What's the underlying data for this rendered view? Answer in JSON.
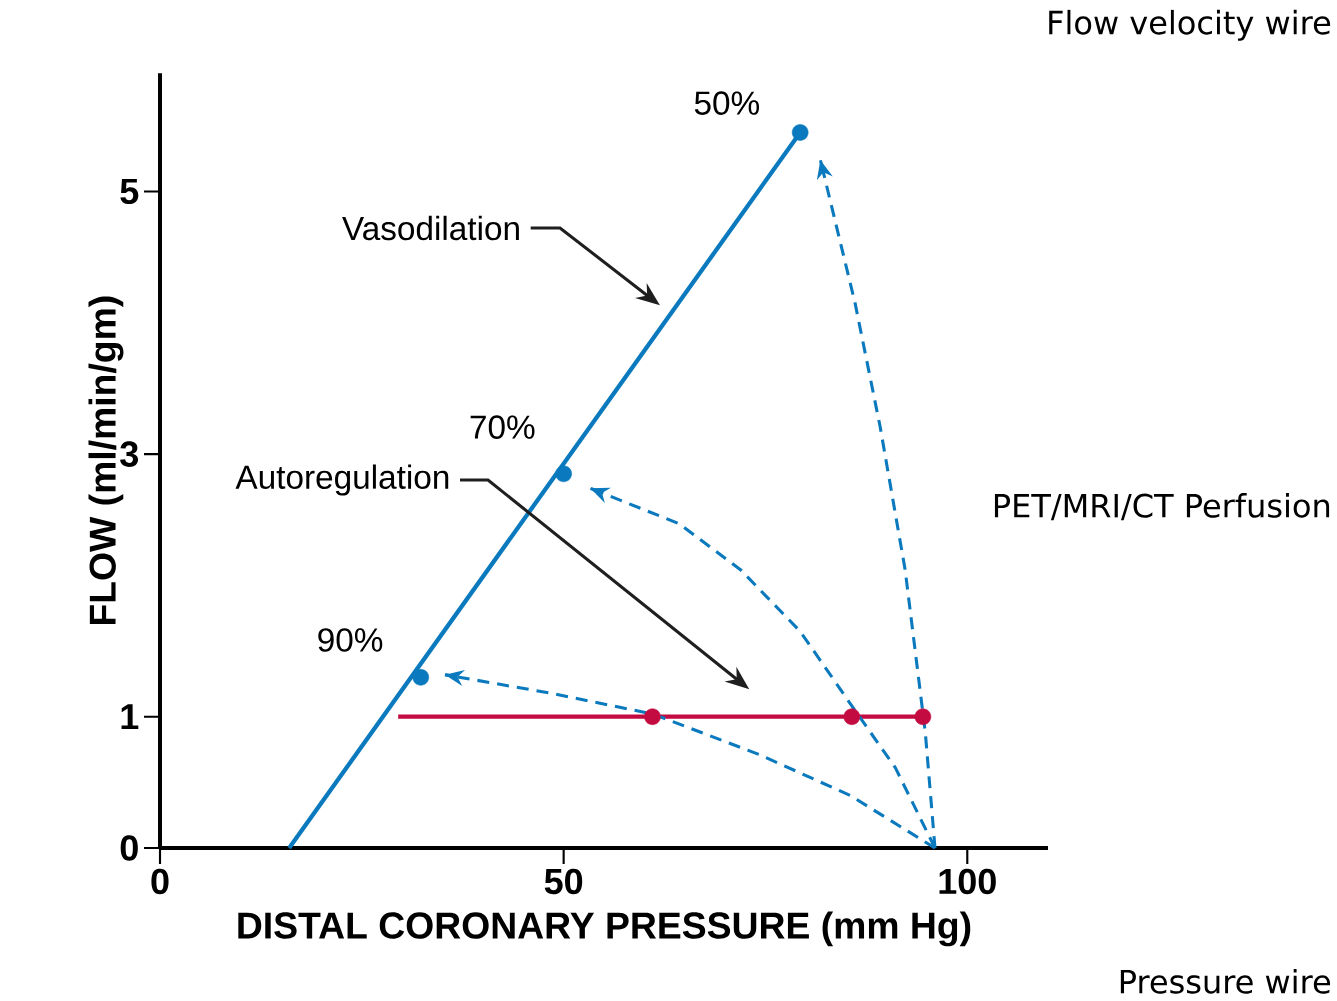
{
  "chart_data": {
    "type": "line",
    "xlabel": "DISTAL CORONARY PRESSURE (mm Hg)",
    "ylabel": "FLOW (ml/min/gm)",
    "xlim": [
      0,
      110
    ],
    "ylim": [
      0,
      5.9
    ],
    "xticks": [
      0,
      50,
      100
    ],
    "yticks": [
      0,
      1,
      3,
      5
    ],
    "series": [
      {
        "type": "line",
        "color": "#0a79bd",
        "marker": "none",
        "line_style": "solid",
        "x": [
          16,
          79.3
        ],
        "values": [
          0,
          5.45
        ]
      },
      {
        "type": "scatter",
        "color": "#0a79bd",
        "marker": "circle",
        "x": [
          32.3,
          50,
          79.3
        ],
        "values": [
          1.3,
          2.85,
          5.45
        ]
      },
      {
        "type": "line",
        "color": "#c30b42",
        "marker": "none",
        "line_style": "solid",
        "x": [
          29.5,
          94.5
        ],
        "values": [
          1,
          1
        ]
      },
      {
        "type": "scatter",
        "color": "#c30b42",
        "marker": "circle",
        "x": [
          61,
          85.7,
          94.5
        ],
        "values": [
          1,
          1,
          1
        ]
      },
      {
        "type": "line",
        "color": "#0a79bd",
        "marker": "none",
        "line_style": "dashed",
        "x": [
          96,
          85.5,
          74.3,
          61.1,
          48.3,
          35.3
        ],
        "values": [
          0,
          0.4,
          0.71,
          1.02,
          1.18,
          1.32
        ]
      },
      {
        "type": "line",
        "color": "#0a79bd",
        "marker": "none",
        "line_style": "dashed",
        "x": [
          96,
          91.1,
          85.5,
          79.3,
          71.9,
          64.3,
          53.3
        ],
        "values": [
          0,
          0.61,
          1.1,
          1.65,
          2.12,
          2.47,
          2.74
        ]
      },
      {
        "type": "line",
        "color": "#0a79bd",
        "marker": "none",
        "line_style": "dashed",
        "x": [
          96,
          94.8,
          92.3,
          89.2,
          86.1,
          81.8
        ],
        "values": [
          0,
          0.88,
          2.12,
          3.21,
          4.15,
          5.24
        ]
      }
    ],
    "annotations": [
      {
        "text": "50%",
        "x": 79.3,
        "y": 5.45
      },
      {
        "text": "70%",
        "x": 50,
        "y": 2.85
      },
      {
        "text": "90%",
        "x": 32.3,
        "y": 1.3
      },
      "Vasodilation",
      "Autoregulation",
      "Flow velocity wire",
      "PET/MRI/CT Perfusion",
      "Pressure wire"
    ]
  }
}
